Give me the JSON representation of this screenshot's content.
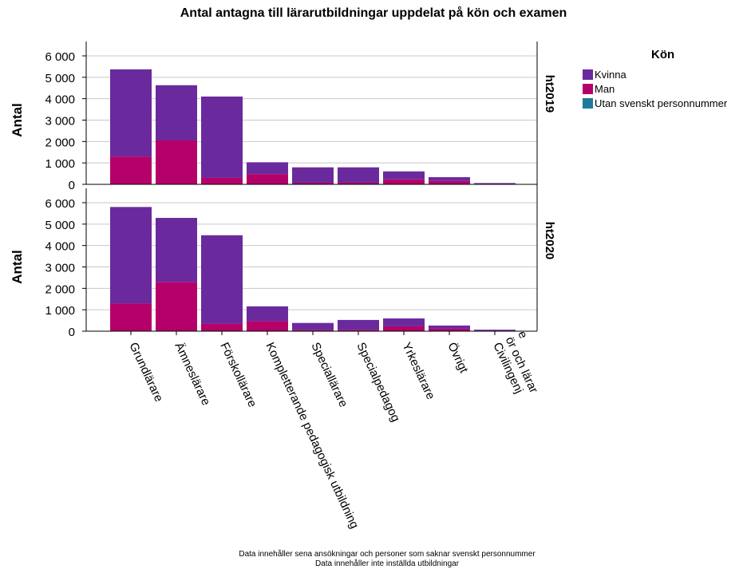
{
  "chart_data": {
    "type": "bar",
    "stacked": true,
    "title": "Antal antagna till lärarutbildningar uppdelat på kön och examen",
    "ylabel": "Antal",
    "ylim": [
      0,
      6000
    ],
    "yticks": [
      0,
      1000,
      2000,
      3000,
      4000,
      5000,
      6000
    ],
    "ytick_labels": [
      "0",
      "1 000",
      "2 000",
      "3 000",
      "4 000",
      "5 000",
      "6 000"
    ],
    "grid": true,
    "categories": [
      "Grundlärare",
      "Ämneslärare",
      "Förskollärare",
      "Kompletterande pedagogisk utbildning",
      "Speciallärare",
      "Specialpedagog",
      "Yrkeslärare",
      "Övrigt",
      "Civilingenjör och lärare"
    ],
    "category_label_lines": [
      [
        "Grundlärare"
      ],
      [
        "Ämneslärare"
      ],
      [
        "Förskollärare"
      ],
      [
        "Kompletterande pedagogisk utbildning"
      ],
      [
        "Speciallärare"
      ],
      [
        "Specialpedagog"
      ],
      [
        "Yrkeslärare"
      ],
      [
        "Övrigt"
      ],
      [
        "Civilingenj",
        "ör och lärar",
        "e"
      ]
    ],
    "legend": {
      "title": "Kön",
      "position": "right",
      "entries": [
        {
          "name": "Kvinna",
          "color": "#6a2a9e"
        },
        {
          "name": "Man",
          "color": "#b5006a"
        },
        {
          "name": "Utan svenskt personnummer",
          "color": "#1f7a99"
        }
      ]
    },
    "panels": [
      {
        "label": "ht2019",
        "series": [
          {
            "name": "Utan svenskt personnummer",
            "values": [
              20,
              20,
              10,
              10,
              5,
              5,
              5,
              5,
              0
            ]
          },
          {
            "name": "Man",
            "values": [
              1280,
              2030,
              290,
              470,
              70,
              70,
              230,
              150,
              20
            ]
          },
          {
            "name": "Kvinna",
            "values": [
              4070,
              2580,
              3800,
              550,
              720,
              720,
              370,
              180,
              40
            ]
          }
        ]
      },
      {
        "label": "ht2020",
        "series": [
          {
            "name": "Utan svenskt personnummer",
            "values": [
              20,
              20,
              10,
              10,
              5,
              5,
              5,
              5,
              0
            ]
          },
          {
            "name": "Man",
            "values": [
              1280,
              2280,
              340,
              460,
              60,
              60,
              220,
              110,
              20
            ]
          },
          {
            "name": "Kvinna",
            "values": [
              4500,
              2990,
              4130,
              690,
              320,
              460,
              370,
              150,
              50
            ]
          }
        ]
      }
    ]
  },
  "footnotes": [
    "Data innehåller sena ansökningar och personer som saknar svenskt personnummer",
    "Data innehåller inte inställda utbildningar"
  ]
}
